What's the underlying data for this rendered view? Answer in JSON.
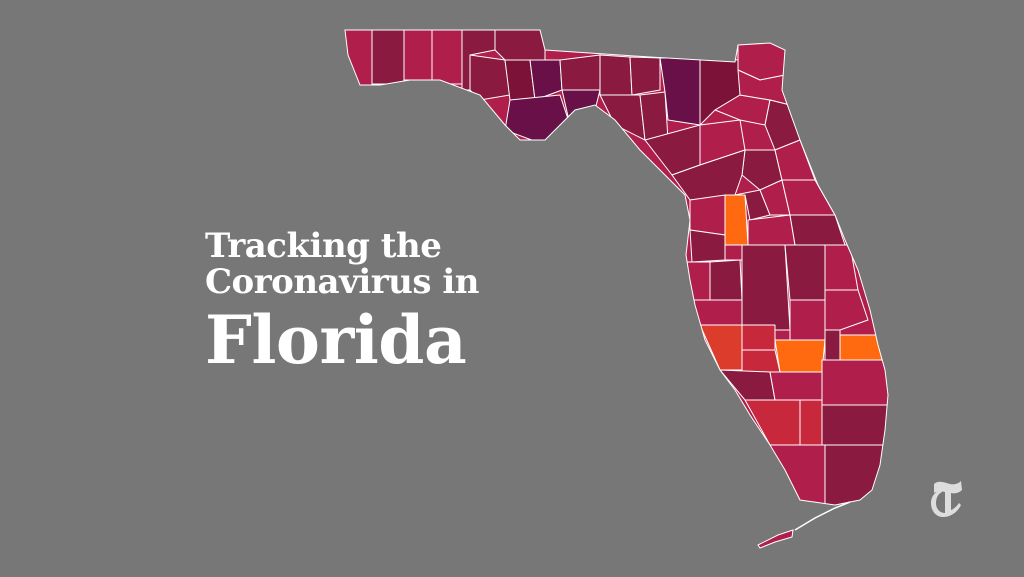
{
  "headline": {
    "line1": "Tracking the",
    "line2": "Coronavirus in",
    "line3": "Florida"
  },
  "map": {
    "region": "Florida",
    "colors": {
      "background": "#777777",
      "county_base": "#b01e4c",
      "deep_maroon": "#7c1238",
      "purple": "#6a1048",
      "red": "#c8283c",
      "red_orange": "#dc3c2c",
      "orange": "#ff6a10",
      "border": "#ffffff"
    }
  },
  "logo": {
    "icon": "nyt-t-logo-icon"
  }
}
